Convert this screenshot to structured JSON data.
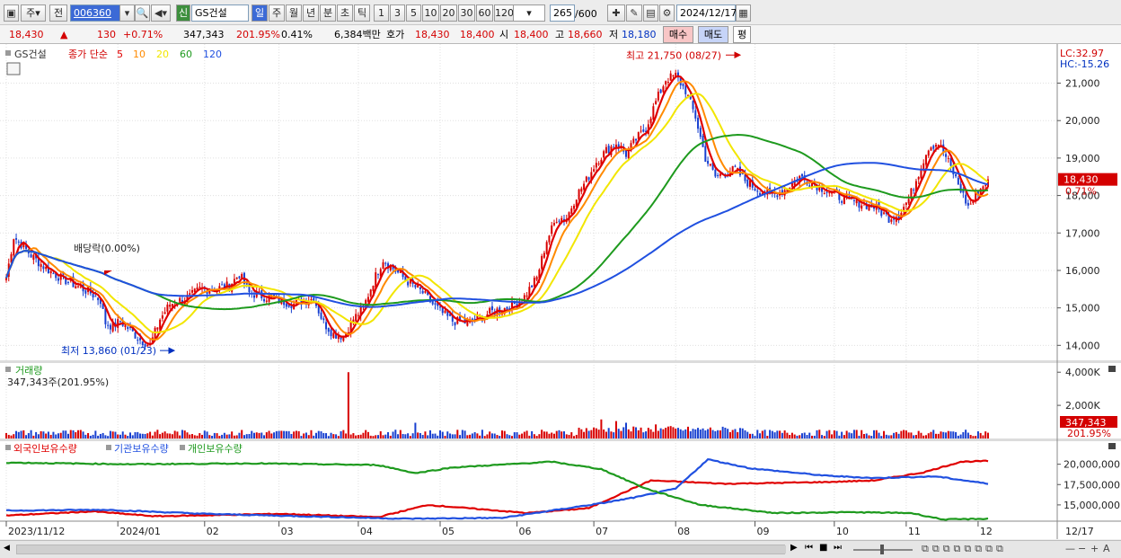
{
  "toolbar": {
    "type_label": "주",
    "prev_label": "전",
    "code": "006360",
    "badge": "신",
    "name": "GS건설",
    "periods": [
      "일",
      "주",
      "월",
      "년",
      "분",
      "초",
      "틱"
    ],
    "active_period": "일",
    "intervals": [
      "1",
      "3",
      "5",
      "10",
      "20",
      "30",
      "60",
      "120"
    ],
    "count": "265",
    "max_count": "/600",
    "date": "2024/12/17"
  },
  "quote": {
    "price": "18,430",
    "change_arrow": "▲",
    "change": "130",
    "change_pct": "+0.71%",
    "volume": "347,343",
    "vol_ratio": "201.95%",
    "turnover": "0.41%",
    "amount": "6,384백만",
    "ask_label": "호가",
    "ask": "18,430",
    "bid": "18,400",
    "open_label": "시",
    "open": "18,400",
    "high_label": "고",
    "high": "18,660",
    "low_label": "저",
    "low": "18,180",
    "buy": "매수",
    "sell": "매도",
    "eval": "평"
  },
  "panels": {
    "price": {
      "legend_name": "GS건설",
      "legend_ma": "종가 단순",
      "ma_periods": [
        "5",
        "10",
        "20",
        "60",
        "120"
      ],
      "lc": "LC:32.97",
      "hc": "HC:-15.26",
      "current_price": "18,430",
      "current_pct": "0.71%",
      "max_note": "최고 21,750 (08/27)",
      "min_note": "최저 13,860 (01/23)",
      "dividend_note": "배당락(0.00%)"
    },
    "volume": {
      "title": "거래량",
      "value": "347,343주(201.95%)",
      "current": "347,343",
      "current_pct": "201.95%"
    },
    "holdings": {
      "series": [
        "외국인보유수량",
        "기관보유수량",
        "개인보유수량"
      ]
    }
  },
  "x_axis_labels": [
    "2023/11/12",
    "2024/01",
    "02",
    "03",
    "04",
    "05",
    "06",
    "07",
    "08",
    "09",
    "10",
    "11",
    "12"
  ],
  "x_last_label": "12/17",
  "colors": {
    "ma5": "#e00000",
    "ma10": "#ff8a00",
    "ma20": "#f2e600",
    "ma60": "#1e9a1e",
    "ma120": "#2050e0",
    "up": "#d80000",
    "down": "#1840d0",
    "foreign": "#e00000",
    "institution": "#2050e0",
    "individual": "#1e9a1e"
  },
  "chart_data": [
    {
      "type": "line",
      "title": "GS건설",
      "subtitle": "종가 단순",
      "x_ticks": [
        "2023/11/12",
        "2024/01",
        "02",
        "03",
        "04",
        "05",
        "06",
        "07",
        "08",
        "09",
        "10",
        "11",
        "12"
      ],
      "ylim": [
        13600,
        21900
      ],
      "y_ticks": [
        14000,
        15000,
        16000,
        17000,
        18000,
        19000,
        20000,
        21000
      ],
      "close_anchors": [
        [
          0,
          15800
        ],
        [
          3,
          16900
        ],
        [
          6,
          16700
        ],
        [
          10,
          16400
        ],
        [
          16,
          16050
        ],
        [
          22,
          15800
        ],
        [
          28,
          15600
        ],
        [
          34,
          15400
        ],
        [
          38,
          15200
        ],
        [
          40,
          14600
        ],
        [
          43,
          14500
        ],
        [
          46,
          14650
        ],
        [
          50,
          14400
        ],
        [
          54,
          14150
        ],
        [
          58,
          14000
        ],
        [
          62,
          14700
        ],
        [
          66,
          15100
        ],
        [
          70,
          15200
        ],
        [
          74,
          15300
        ],
        [
          78,
          15500
        ],
        [
          84,
          15500
        ],
        [
          90,
          15600
        ],
        [
          94,
          15900
        ],
        [
          98,
          15400
        ],
        [
          104,
          15300
        ],
        [
          110,
          15200
        ],
        [
          116,
          15100
        ],
        [
          120,
          15200
        ],
        [
          124,
          15250
        ],
        [
          128,
          14600
        ],
        [
          132,
          14300
        ],
        [
          136,
          14250
        ],
        [
          140,
          14700
        ],
        [
          144,
          15000
        ],
        [
          148,
          15700
        ],
        [
          152,
          16300
        ],
        [
          156,
          16050
        ],
        [
          162,
          15700
        ],
        [
          168,
          15400
        ],
        [
          172,
          15100
        ],
        [
          176,
          14850
        ],
        [
          180,
          14650
        ],
        [
          186,
          14600
        ],
        [
          190,
          14700
        ],
        [
          196,
          14900
        ],
        [
          202,
          15000
        ],
        [
          208,
          15200
        ],
        [
          214,
          15800
        ],
        [
          218,
          16800
        ],
        [
          222,
          17400
        ],
        [
          226,
          17400
        ],
        [
          230,
          18000
        ],
        [
          234,
          18400
        ],
        [
          238,
          18900
        ],
        [
          242,
          19200
        ],
        [
          246,
          19400
        ],
        [
          250,
          19100
        ],
        [
          254,
          19500
        ],
        [
          258,
          19800
        ],
        [
          262,
          20500
        ],
        [
          266,
          21100
        ],
        [
          270,
          21200
        ],
        [
          274,
          20800
        ],
        [
          278,
          20100
        ],
        [
          282,
          19000
        ],
        [
          286,
          18500
        ],
        [
          290,
          18600
        ],
        [
          294,
          18700
        ],
        [
          298,
          18400
        ],
        [
          302,
          18200
        ],
        [
          308,
          18000
        ],
        [
          314,
          18150
        ],
        [
          320,
          18500
        ],
        [
          326,
          18300
        ],
        [
          332,
          18100
        ],
        [
          338,
          17900
        ],
        [
          344,
          17800
        ],
        [
          350,
          17700
        ],
        [
          356,
          17400
        ],
        [
          360,
          17500
        ],
        [
          364,
          17900
        ],
        [
          368,
          18600
        ],
        [
          372,
          19300
        ],
        [
          376,
          19400
        ],
        [
          380,
          18900
        ],
        [
          384,
          18300
        ],
        [
          388,
          17700
        ],
        [
          392,
          18100
        ],
        [
          396,
          18430
        ]
      ],
      "series": [
        {
          "name": "5",
          "color": "#e00000",
          "window": 5
        },
        {
          "name": "10",
          "color": "#ff8a00",
          "window": 10
        },
        {
          "name": "20",
          "color": "#f2e600",
          "window": 20
        },
        {
          "name": "60",
          "color": "#1e9a1e",
          "window": 60
        },
        {
          "name": "120",
          "color": "#2050e0",
          "window": 120
        }
      ],
      "annotations": [
        {
          "text": "최고 21,750 (08/27)",
          "value": 21750
        },
        {
          "text": "최저 13,860 (01/23)",
          "value": 13860
        },
        {
          "text": "배당락(0.00%)"
        }
      ]
    },
    {
      "type": "bar",
      "title": "거래량",
      "ylim": [
        0,
        4500000
      ],
      "y_ticks": [
        2000000,
        4000000
      ],
      "y_tick_labels": [
        "2,000K",
        "4,000K"
      ],
      "spikes": [
        [
          138,
          4000000
        ],
        [
          165,
          950000
        ],
        [
          240,
          1150000
        ],
        [
          246,
          1050000
        ],
        [
          250,
          950000
        ],
        [
          262,
          850000
        ],
        [
          268,
          750000
        ],
        [
          396,
          347343
        ]
      ],
      "last_value": 347343
    },
    {
      "type": "line",
      "title": "외국인보유수량 / 기관보유수량 / 개인보유수량",
      "ylim": [
        13000000,
        22500000
      ],
      "y_ticks": [
        15000000,
        17500000,
        20000000
      ],
      "y_tick_labels": [
        "15,000,000",
        "17,500,000",
        "20,000,000"
      ],
      "series": [
        {
          "name": "외국인보유수량",
          "color": "#e00000",
          "points": [
            [
              0,
              13700000
            ],
            [
              35,
              14200000
            ],
            [
              60,
              13600000
            ],
            [
              110,
              13900000
            ],
            [
              150,
              13500000
            ],
            [
              170,
              15000000
            ],
            [
              210,
              14000000
            ],
            [
              235,
              14600000
            ],
            [
              260,
              18000000
            ],
            [
              290,
              17600000
            ],
            [
              330,
              17800000
            ],
            [
              350,
              18000000
            ],
            [
              370,
              19000000
            ],
            [
              385,
              20300000
            ],
            [
              396,
              20400000
            ]
          ]
        },
        {
          "name": "기관보유수량",
          "color": "#2050e0",
          "points": [
            [
              0,
              14300000
            ],
            [
              40,
              14400000
            ],
            [
              80,
              13900000
            ],
            [
              120,
              13600000
            ],
            [
              160,
              13300000
            ],
            [
              200,
              13400000
            ],
            [
              240,
              15200000
            ],
            [
              255,
              16000000
            ],
            [
              270,
              17000000
            ],
            [
              283,
              20600000
            ],
            [
              300,
              19500000
            ],
            [
              330,
              18600000
            ],
            [
              350,
              18300000
            ],
            [
              375,
              18500000
            ],
            [
              396,
              17600000
            ]
          ]
        },
        {
          "name": "개인보유수량",
          "color": "#1e9a1e",
          "points": [
            [
              0,
              20200000
            ],
            [
              50,
              20000000
            ],
            [
              100,
              20100000
            ],
            [
              150,
              19900000
            ],
            [
              165,
              18900000
            ],
            [
              180,
              19600000
            ],
            [
              220,
              20300000
            ],
            [
              240,
              19400000
            ],
            [
              258,
              17000000
            ],
            [
              280,
              15000000
            ],
            [
              310,
              14000000
            ],
            [
              340,
              14100000
            ],
            [
              365,
              14000000
            ],
            [
              378,
              13200000
            ],
            [
              396,
              13300000
            ]
          ]
        }
      ]
    }
  ]
}
